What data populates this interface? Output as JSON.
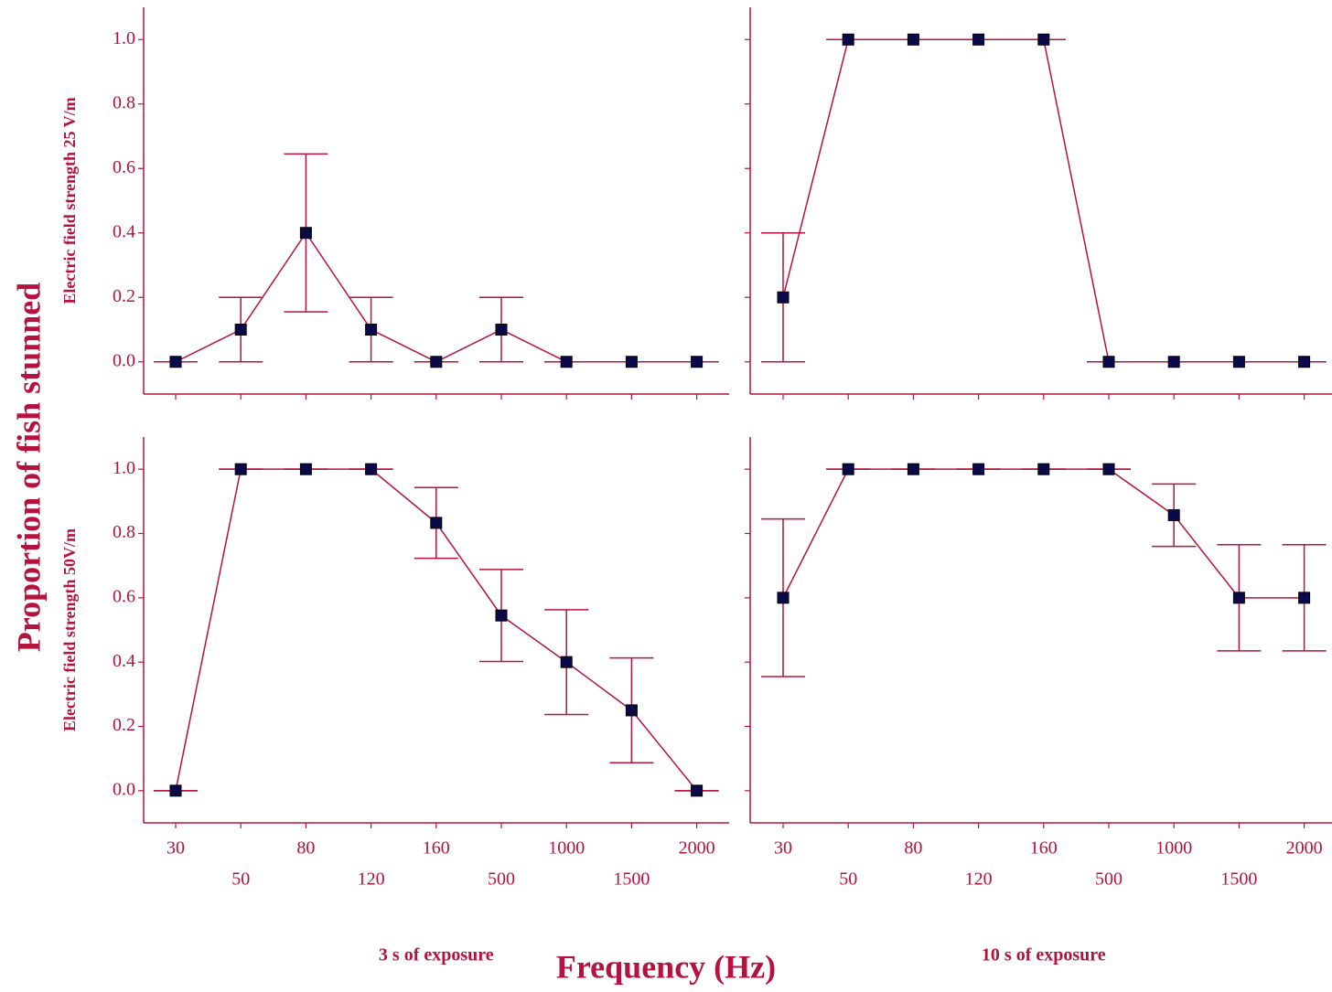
{
  "figure": {
    "ylabel": "Proportion of fish stunned",
    "xlabel": "Frequency (Hz)"
  },
  "chart_data": [
    {
      "type": "line",
      "ylabel": "Electric field strength 25 V/m",
      "categories": [
        null,
        null,
        null,
        null,
        null,
        null,
        null,
        null,
        null
      ],
      "values": [
        0,
        0.1,
        0.4,
        0.1,
        0,
        0.1,
        0,
        0,
        0
      ],
      "errors": [
        0,
        0.1,
        0.245,
        0.1,
        0,
        0.1,
        0,
        0,
        0
      ],
      "color": "#b5123e",
      "marker_color": "#0a0a4a",
      "ylim": [
        -0.1,
        1.1
      ],
      "yticks": [
        {
          "value": 0,
          "label": "0.0"
        },
        {
          "value": 0.2,
          "label": "0.2"
        },
        {
          "value": 0.4,
          "label": "0.4"
        },
        {
          "value": 0.6,
          "label": "0.6"
        },
        {
          "value": 0.8,
          "label": "0.8"
        },
        {
          "value": 1,
          "label": "1.0"
        }
      ]
    },
    {
      "type": "line",
      "categories": [
        null,
        null,
        null,
        null,
        null,
        null,
        null,
        null,
        null
      ],
      "values": [
        0.2,
        1,
        1,
        1,
        1,
        0,
        0,
        0,
        0
      ],
      "errors": [
        0.2,
        0,
        0,
        0,
        0,
        0,
        0,
        0,
        0
      ],
      "color": "#b5123e",
      "marker_color": "#0a0a4a",
      "ylim": [
        -0.1,
        1.1
      ],
      "yticks": [
        0,
        0.2,
        0.4,
        0.6,
        0.8,
        1
      ]
    },
    {
      "type": "line",
      "ylabel": "Electric field strength 50V/m",
      "xlabel": "3 s of exposure",
      "categories": [
        "30",
        "50",
        "80",
        "120",
        "160",
        "500",
        "1000",
        "1500",
        "2000"
      ],
      "values": [
        0,
        1,
        1,
        1,
        0.833,
        0.545,
        0.4,
        0.25,
        0
      ],
      "errors": [
        0,
        0,
        0,
        0,
        0.11,
        0.143,
        0.163,
        0.163,
        0
      ],
      "color": "#b5123e",
      "marker_color": "#0a0a4a",
      "ylim": [
        -0.1,
        1.1
      ],
      "yticks": [
        {
          "value": 0,
          "label": "0.0"
        },
        {
          "value": 0.2,
          "label": "0.2"
        },
        {
          "value": 0.4,
          "label": "0.4"
        },
        {
          "value": 0.6,
          "label": "0.6"
        },
        {
          "value": 0.8,
          "label": "0.8"
        },
        {
          "value": 1,
          "label": "1.0"
        }
      ]
    },
    {
      "type": "line",
      "xlabel": "10 s of exposure",
      "categories": [
        "30",
        "50",
        "80",
        "120",
        "160",
        "500",
        "1000",
        "1500",
        "2000"
      ],
      "values": [
        0.6,
        1,
        1,
        1,
        1,
        1,
        0.857,
        0.6,
        0.6
      ],
      "errors": [
        0.245,
        0,
        0,
        0,
        0,
        0,
        0.097,
        0.165,
        0.165
      ],
      "color": "#b5123e",
      "marker_color": "#0a0a4a",
      "ylim": [
        -0.1,
        1.1
      ],
      "yticks": [
        0,
        0.2,
        0.4,
        0.6,
        0.8,
        1
      ]
    }
  ]
}
